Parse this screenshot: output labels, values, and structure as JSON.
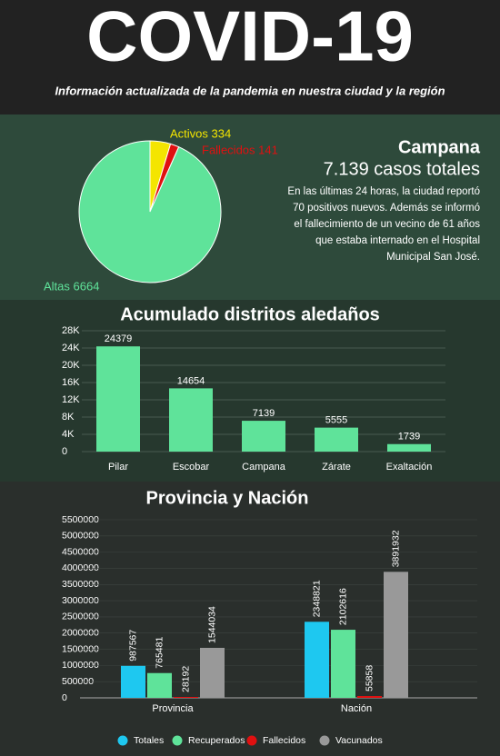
{
  "header": {
    "title": "COVID-19",
    "subtitle": "Información actualizada de la pandemia en nuestra ciudad y la región"
  },
  "chart_data": [
    {
      "type": "pie",
      "title": "Campana",
      "subtitle": "7.139 casos totales",
      "annotation": [
        "En las últimas 24 horas, la ciudad reportó",
        "70 positivos nuevos. Además se informó",
        "el fallecimiento de un vecino de 61 años",
        "que estaba internado en el Hospital",
        "Municipal San José."
      ],
      "values": [
        334,
        141,
        6664
      ],
      "value_labels": [
        "Activos 334",
        "Fallecidos 141",
        "Altas 6664"
      ],
      "colors": [
        "#f4e500",
        "#e01010",
        "#5fe39a"
      ]
    },
    {
      "type": "bar",
      "title": "Acumulado distritos aledaños",
      "categories": [
        "Pilar",
        "Escobar",
        "Campana",
        "Zárate",
        "Exaltación"
      ],
      "values": [
        24379,
        14654,
        7139,
        5555,
        1739
      ],
      "color": "#5fe39a",
      "ylim": [
        0,
        28000
      ],
      "yticks": [
        0,
        {
          "value": 4000,
          "label": "4K"
        },
        {
          "value": 8000,
          "label": "8K"
        },
        {
          "value": 12000,
          "label": "12K"
        },
        {
          "value": 16000,
          "label": "16K"
        },
        {
          "value": 20000,
          "label": "20K"
        },
        {
          "value": 24000,
          "label": "24K"
        },
        {
          "value": 28000,
          "label": "28K"
        }
      ],
      "grid": true
    },
    {
      "type": "grouped-bar",
      "title": "Provincia y Nación",
      "categories": [
        "Provincia",
        "Nación"
      ],
      "series": [
        {
          "name": "Totales",
          "color": "#1ec8f0",
          "values": [
            987567,
            2348821
          ]
        },
        {
          "name": "Recuperados",
          "color": "#5fe39a",
          "values": [
            765481,
            2102616
          ]
        },
        {
          "name": "Fallecidos",
          "color": "#e01010",
          "values": [
            28192,
            55858
          ]
        },
        {
          "name": "Vacunados",
          "color": "#999999",
          "values": [
            1544034,
            3891932
          ]
        }
      ],
      "ylim": [
        0,
        5500000
      ],
      "yticks": [
        0,
        500000,
        1000000,
        1500000,
        2000000,
        2500000,
        3000000,
        3500000,
        4000000,
        4500000,
        5000000,
        5500000
      ],
      "grid": true
    }
  ]
}
